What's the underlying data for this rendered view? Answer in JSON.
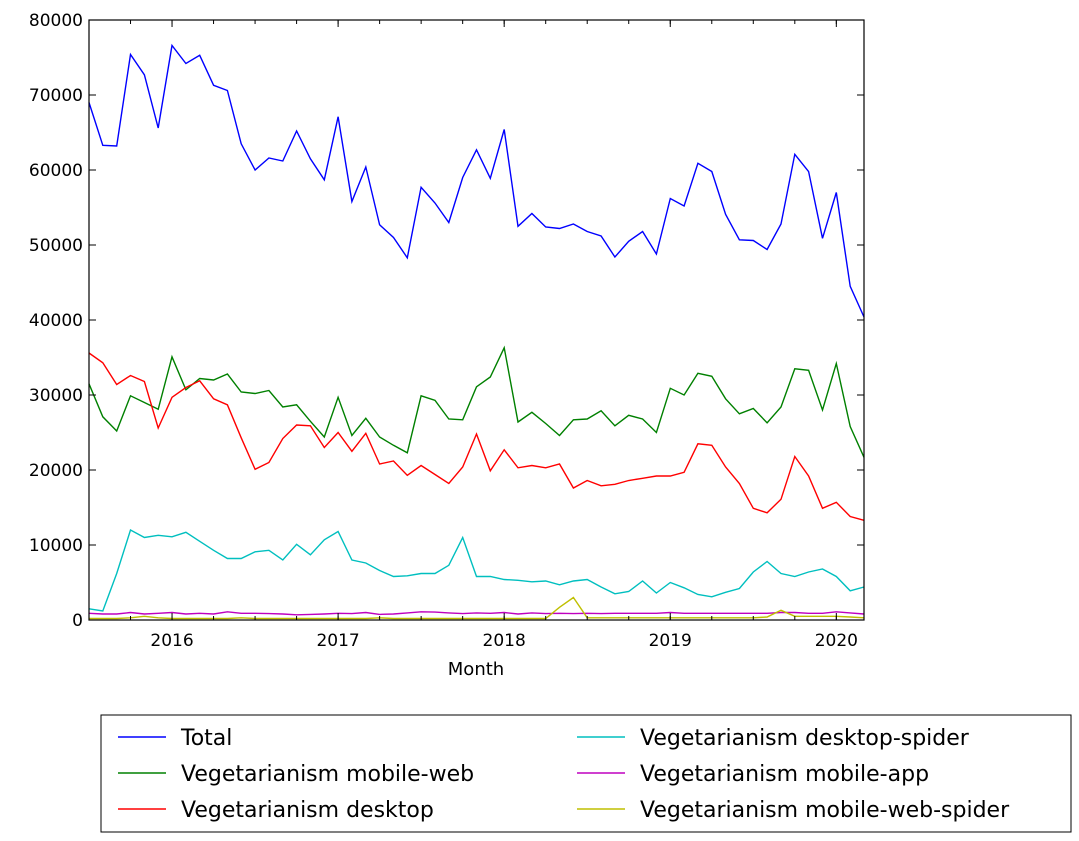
{
  "chart_data": {
    "type": "line",
    "title": "",
    "xlabel": "Month",
    "ylabel": "",
    "x_start": "2015-07",
    "x_end": "2020-03",
    "ylim": [
      0,
      80000
    ],
    "yticks": [
      0,
      10000,
      20000,
      30000,
      40000,
      50000,
      60000,
      70000,
      80000
    ],
    "xticks": [
      {
        "label": "2016",
        "month_index": 6
      },
      {
        "label": "2017",
        "month_index": 18
      },
      {
        "label": "2018",
        "month_index": 30
      },
      {
        "label": "2019",
        "month_index": 42
      },
      {
        "label": "2020",
        "month_index": 54
      }
    ],
    "grid": false,
    "legend_placement": "below, two columns",
    "series": [
      {
        "name": "Total",
        "color": "#0000ff",
        "values": [
          69000,
          63300,
          63200,
          75400,
          72700,
          65600,
          76600,
          74200,
          75300,
          71300,
          70600,
          63500,
          60000,
          61600,
          61200,
          65200,
          61500,
          58700,
          67100,
          55800,
          60400,
          52700,
          51000,
          48300,
          57700,
          55600,
          53000,
          59000,
          62700,
          58900,
          65400,
          52500,
          54200,
          52400,
          52200,
          52800,
          51800,
          51200,
          48400,
          50500,
          51800,
          48800,
          56200,
          55200,
          60900,
          59800,
          54100,
          50700,
          50600,
          49400,
          52800,
          62100,
          59800,
          50900,
          57000,
          44500,
          40400
        ]
      },
      {
        "name": "Vegetarianism mobile-web",
        "color": "#008000",
        "values": [
          31500,
          27100,
          25200,
          29900,
          29000,
          28100,
          35100,
          30700,
          32200,
          32000,
          32800,
          30400,
          30200,
          30600,
          28400,
          28700,
          26500,
          24400,
          29700,
          24600,
          26900,
          24400,
          23300,
          22300,
          29900,
          29300,
          26800,
          26700,
          31100,
          32400,
          36300,
          26400,
          27700,
          26200,
          24600,
          26700,
          26800,
          27900,
          25900,
          27300,
          26800,
          25000,
          30900,
          30000,
          32900,
          32500,
          29500,
          27500,
          28200,
          26300,
          28400,
          33500,
          33300,
          28000,
          34200,
          25800,
          21700
        ]
      },
      {
        "name": "Vegetarianism desktop",
        "color": "#ff0000",
        "values": [
          35600,
          34300,
          31400,
          32600,
          31800,
          25600,
          29700,
          31000,
          31900,
          29500,
          28700,
          24300,
          20100,
          21000,
          24200,
          26000,
          25900,
          23000,
          25000,
          22500,
          24900,
          20800,
          21200,
          19300,
          20600,
          19400,
          18200,
          20400,
          24800,
          19900,
          22700,
          20300,
          20600,
          20300,
          20800,
          17600,
          18600,
          17900,
          18100,
          18600,
          18900,
          19200,
          19200,
          19700,
          23500,
          23300,
          20400,
          18200,
          14900,
          14300,
          16100,
          21800,
          19200,
          14900,
          15700,
          13800,
          13300
        ]
      },
      {
        "name": "Vegetarianism desktop-spider",
        "color": "#00bfbf",
        "values": [
          1500,
          1200,
          6200,
          12000,
          11000,
          11300,
          11100,
          11700,
          10500,
          9300,
          8200,
          8200,
          9100,
          9300,
          8000,
          10100,
          8700,
          10700,
          11800,
          8000,
          7600,
          6600,
          5800,
          5900,
          6200,
          6200,
          7300,
          11000,
          5800,
          5800,
          5400,
          5300,
          5100,
          5200,
          4700,
          5200,
          5400,
          4400,
          3500,
          3800,
          5200,
          3600,
          5000,
          4300,
          3400,
          3100,
          3700,
          4200,
          6400,
          7800,
          6200,
          5800,
          6400,
          6800,
          5800,
          3900,
          4400
        ]
      },
      {
        "name": "Vegetarianism mobile-app",
        "color": "#bf00bf",
        "values": [
          900,
          800,
          800,
          1000,
          800,
          900,
          1000,
          800,
          900,
          800,
          1100,
          900,
          900,
          850,
          800,
          700,
          750,
          800,
          900,
          850,
          1000,
          750,
          800,
          950,
          1100,
          1050,
          950,
          850,
          950,
          900,
          1000,
          800,
          950,
          850,
          900,
          850,
          900,
          850,
          900,
          900,
          900,
          900,
          1000,
          900,
          900,
          900,
          900,
          900,
          900,
          900,
          1000,
          1000,
          900,
          900,
          1100,
          950,
          800
        ]
      },
      {
        "name": "Vegetarianism mobile-web-spider",
        "color": "#bfbf00",
        "values": [
          200,
          200,
          200,
          300,
          500,
          300,
          200,
          200,
          200,
          200,
          200,
          300,
          200,
          200,
          200,
          200,
          200,
          200,
          200,
          200,
          200,
          300,
          200,
          200,
          200,
          200,
          200,
          200,
          200,
          200,
          200,
          200,
          200,
          200,
          1700,
          3000,
          300,
          300,
          300,
          300,
          300,
          300,
          300,
          300,
          300,
          300,
          300,
          300,
          300,
          400,
          1300,
          500,
          500,
          500,
          500,
          400,
          300
        ]
      }
    ]
  }
}
